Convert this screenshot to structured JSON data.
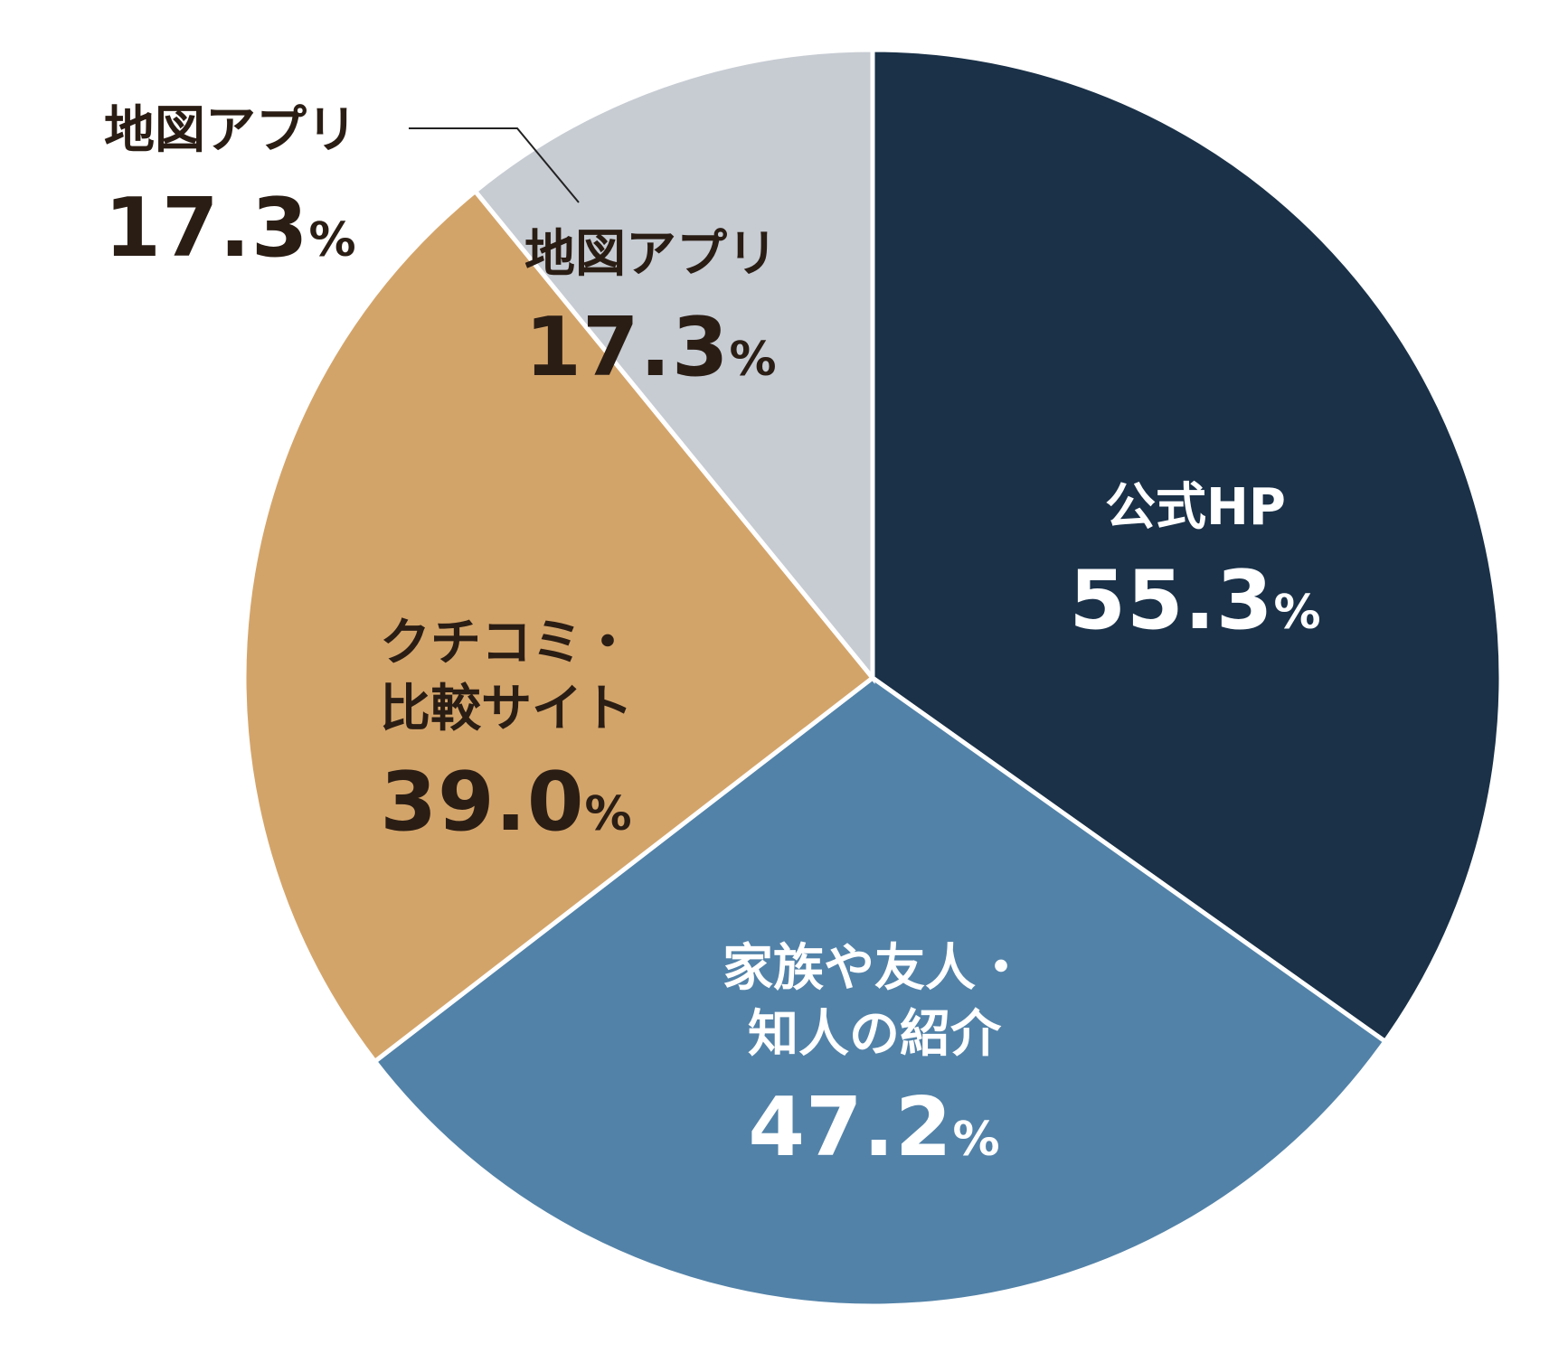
{
  "chart_data": {
    "type": "pie",
    "unit": "%",
    "slices": [
      {
        "name_lines": [
          "公式HP"
        ],
        "value": 55.3,
        "display": "55.3",
        "color": "#1a3148",
        "text_color": "#ffffff"
      },
      {
        "name_lines": [
          "家族や友人・",
          "知人の紹介"
        ],
        "value": 47.2,
        "display": "47.2",
        "color": "#5282a8",
        "text_color": "#ffffff"
      },
      {
        "name_lines": [
          "クチコミ・",
          "比較サイト"
        ],
        "value": 39.0,
        "display": "39.0",
        "color": "#d3a46a",
        "text_color": "#2a1d14"
      },
      {
        "name_lines": [
          "地図アプリ"
        ],
        "value": 17.3,
        "display": "17.3",
        "color": "#c7ccd3",
        "text_color": "#2a1d14"
      }
    ],
    "callout": {
      "name": "地図アプリ",
      "value": "17.3",
      "unit": "%",
      "text_color": "#2a1d14"
    }
  }
}
